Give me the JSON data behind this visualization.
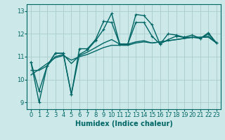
{
  "title": "",
  "xlabel": "Humidex (Indice chaleur)",
  "ylabel": "",
  "bg_color": "#cce8e8",
  "grid_color": "#aacccc",
  "line_color": "#006666",
  "xlim": [
    -0.5,
    23.5
  ],
  "ylim": [
    8.7,
    13.3
  ],
  "yticks": [
    9,
    10,
    11,
    12,
    13
  ],
  "xticks": [
    0,
    1,
    2,
    3,
    4,
    5,
    6,
    7,
    8,
    9,
    10,
    11,
    12,
    13,
    14,
    15,
    16,
    17,
    18,
    19,
    20,
    21,
    22,
    23
  ],
  "series": [
    [
      10.75,
      9.0,
      10.6,
      11.15,
      11.15,
      9.35,
      11.1,
      11.3,
      11.7,
      12.2,
      12.9,
      11.55,
      11.55,
      12.85,
      12.8,
      12.4,
      11.55,
      12.0,
      11.95,
      11.85,
      11.95,
      11.8,
      12.05,
      11.6
    ],
    [
      10.75,
      9.5,
      10.6,
      11.15,
      11.15,
      9.35,
      11.35,
      11.35,
      11.75,
      12.55,
      12.5,
      11.55,
      11.55,
      12.5,
      12.5,
      11.9,
      11.55,
      11.75,
      11.9,
      11.85,
      11.85,
      11.8,
      12.0,
      11.6
    ],
    [
      10.4,
      10.4,
      10.6,
      11.0,
      11.1,
      10.7,
      11.05,
      11.2,
      11.4,
      11.6,
      11.75,
      11.55,
      11.55,
      11.65,
      11.7,
      11.6,
      11.65,
      11.7,
      11.75,
      11.8,
      11.85,
      11.85,
      11.9,
      11.6
    ],
    [
      10.2,
      10.45,
      10.7,
      10.95,
      11.05,
      10.85,
      11.0,
      11.1,
      11.25,
      11.4,
      11.5,
      11.5,
      11.5,
      11.6,
      11.65,
      11.6,
      11.65,
      11.7,
      11.75,
      11.8,
      11.85,
      11.85,
      11.85,
      11.6
    ]
  ],
  "markers": [
    "+",
    "+",
    null,
    null
  ],
  "linewidths": [
    1.0,
    1.0,
    1.0,
    1.0
  ],
  "font_size": 7,
  "xlabel_fontsize": 7,
  "tick_labelsize": 6
}
